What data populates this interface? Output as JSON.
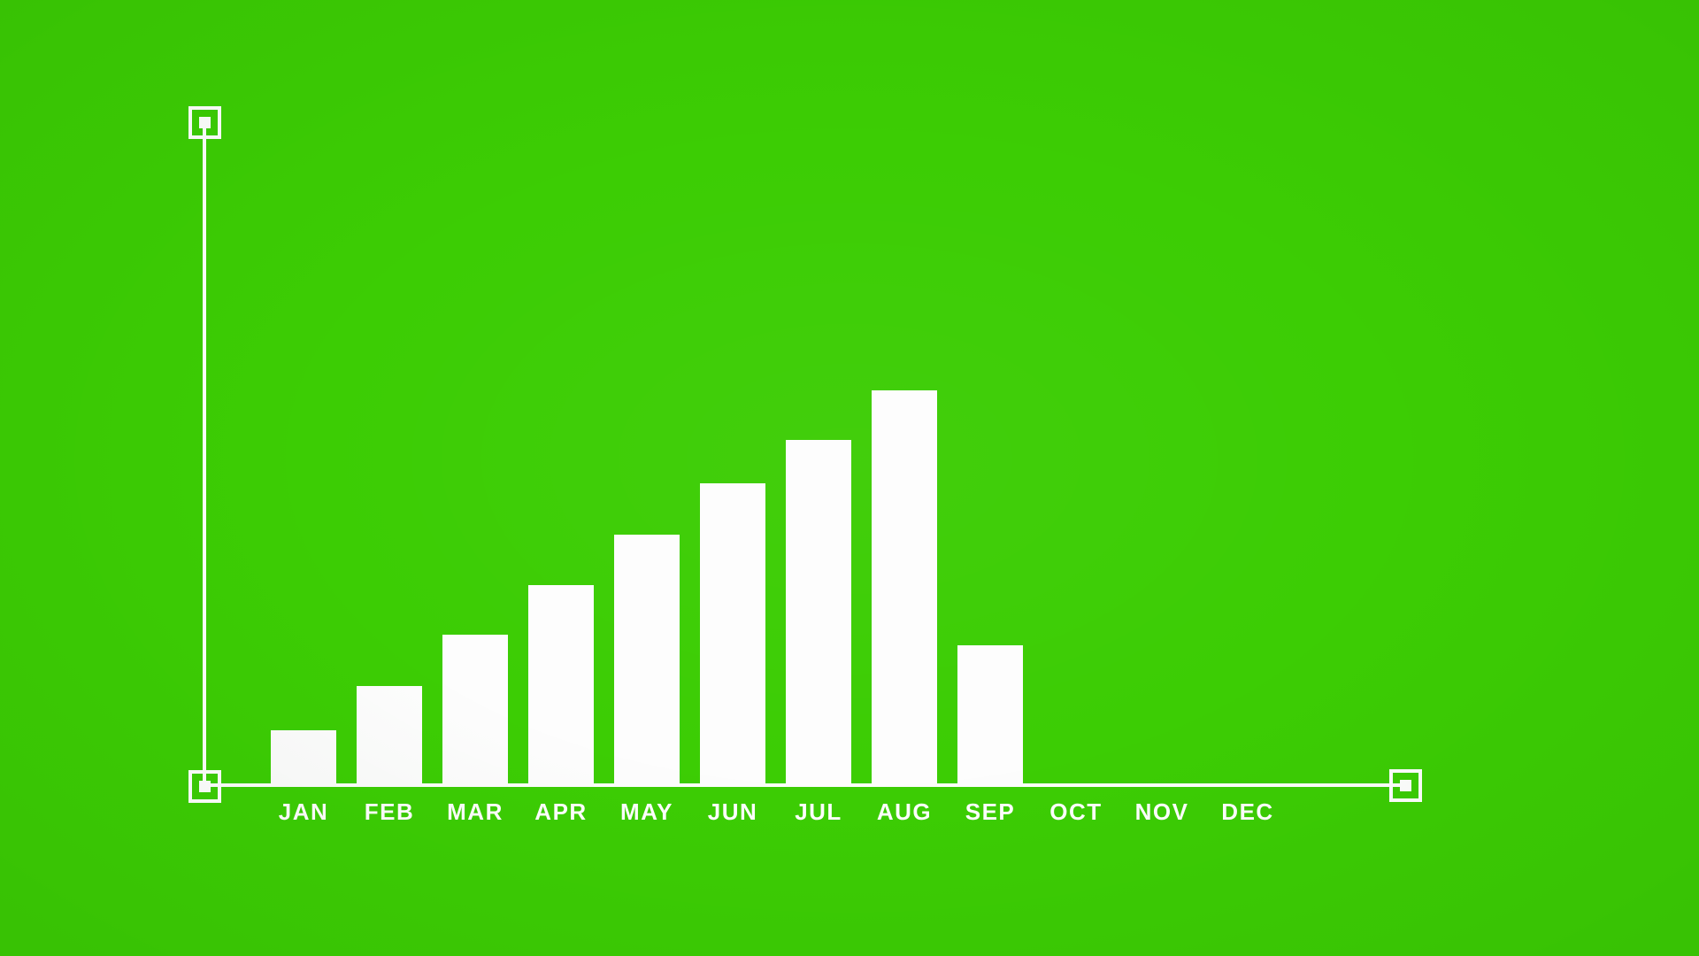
{
  "background": {
    "color": "#3ccd04",
    "style": "chroma-green flat backdrop"
  },
  "colors": {
    "bar": "#fdfdfd",
    "axis": "#ffffff",
    "label_text": "#ffffff"
  },
  "icons": {
    "axis_endpoint_handle": "square-in-square handle"
  },
  "chart_data": {
    "type": "bar",
    "title": "",
    "xlabel": "",
    "ylabel": "",
    "categories": [
      "JAN",
      "FEB",
      "MAR",
      "APR",
      "MAY",
      "JUN",
      "JUL",
      "AUG",
      "SEP",
      "OCT",
      "NOV",
      "DEC"
    ],
    "values": [
      13.5,
      24.8,
      37.8,
      50.5,
      63.3,
      76.4,
      87.4,
      100,
      35.1,
      0,
      0,
      0
    ],
    "value_unit": "percent of tallest bar (no numeric axis labels shown)",
    "ylim": [
      0,
      100
    ],
    "grid": false,
    "legend": false,
    "axis_style": "plain white L-axis with square endpoint handles, no tick values"
  }
}
